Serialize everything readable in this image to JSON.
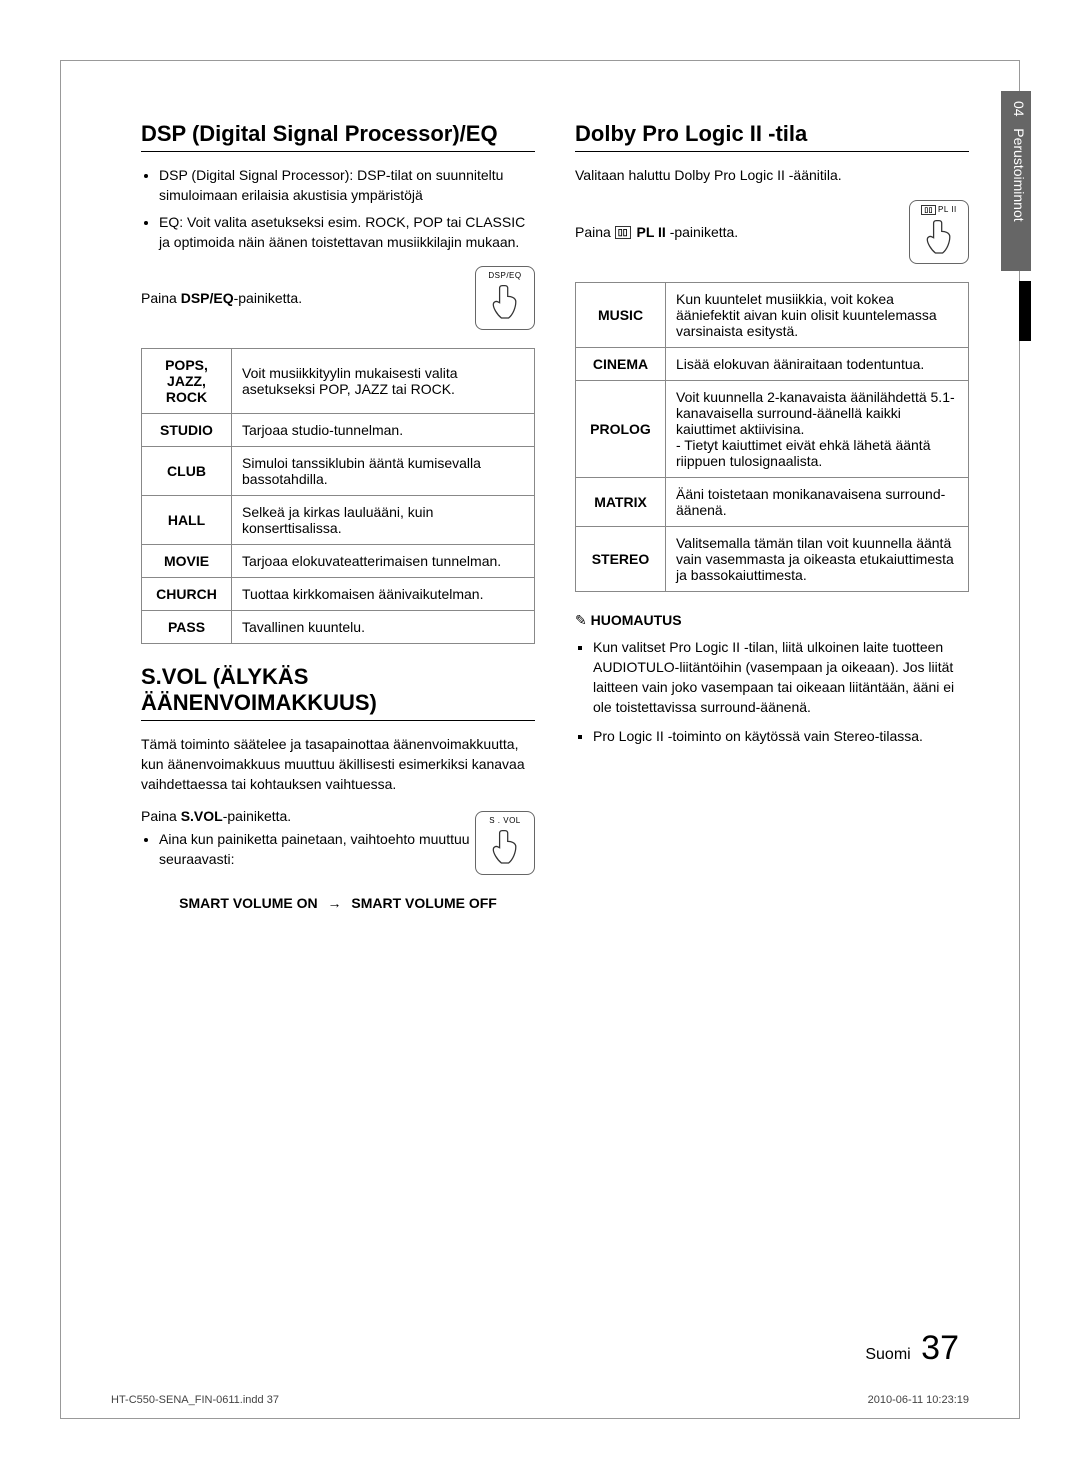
{
  "sidebar": {
    "chapter": "04",
    "title": "Perustoiminnot"
  },
  "left": {
    "h_dsp": "DSP (Digital Signal Processor)/EQ",
    "dsp_bullets": [
      "DSP (Digital Signal Processor): DSP-tilat on suunniteltu simuloimaan erilaisia akustisia ympäristöjä",
      "EQ: Voit valita asetukseksi esim. ROCK, POP tai CLASSIC ja optimoida näin äänen toistettavan musiikkilajin mukaan."
    ],
    "dsp_press_pre": "Paina ",
    "dsp_press_bold": "DSP/EQ",
    "dsp_press_post": "-painiketta.",
    "dsp_btn_label": "DSP/EQ",
    "dsp_table": [
      {
        "mode": "POPS, JAZZ, ROCK",
        "desc": "Voit musiikkityylin mukaisesti valita asetukseksi POP, JAZZ tai ROCK."
      },
      {
        "mode": "STUDIO",
        "desc": "Tarjoaa studio-tunnelman."
      },
      {
        "mode": "CLUB",
        "desc": "Simuloi tanssiklubin ääntä kumisevalla bassotahdilla."
      },
      {
        "mode": "HALL",
        "desc": "Selkeä ja kirkas lauluääni, kuin konserttisalissa."
      },
      {
        "mode": "MOVIE",
        "desc": "Tarjoaa elokuvateatterimaisen tunnelman."
      },
      {
        "mode": "CHURCH",
        "desc": "Tuottaa kirkkomaisen äänivaikutelman."
      },
      {
        "mode": "PASS",
        "desc": "Tavallinen kuuntelu."
      }
    ],
    "h_svol": "S.VOL (ÄLYKÄS ÄÄNENVOIMAKKUUS)",
    "svol_para": "Tämä toiminto säätelee ja tasapainottaa äänenvoimakkuutta, kun äänenvoimakkuus muuttuu äkillisesti esimerkiksi kanavaa vaihdettaessa tai kohtauksen vaihtuessa.",
    "svol_press_pre": "Paina ",
    "svol_press_bold": "S.VOL",
    "svol_press_post": "-painiketta.",
    "svol_btn_label": "S . VOL",
    "svol_sub": "Aina kun painiketta painetaan, vaihtoehto muuttuu seuraavasti:",
    "svol_seq_a": "SMART VOLUME ON",
    "svol_seq_b": "SMART VOLUME OFF"
  },
  "right": {
    "h_dolby": "Dolby Pro Logic II -tila",
    "dolby_para": "Valitaan haluttu Dolby Pro Logic II -äänitila.",
    "dolby_press_pre": "Paina ",
    "dolby_press_bold": "PL II",
    "dolby_press_post": " -painiketta.",
    "dolby_btn_label": "PL II",
    "dolby_table": [
      {
        "mode": "MUSIC",
        "desc": "Kun kuuntelet musiikkia, voit kokea ääniefektit aivan kuin olisit kuuntelemassa varsinaista esitystä."
      },
      {
        "mode": "CINEMA",
        "desc": "Lisää elokuvan ääniraitaan todentuntua."
      },
      {
        "mode": "PROLOG",
        "desc": "Voit kuunnella 2-kanavaista äänilähdettä 5.1-kanavaisella surround-äänellä kaikki kaiuttimet aktiivisina.\n- Tietyt kaiuttimet eivät ehkä lähetä ääntä riippuen tulosignaalista."
      },
      {
        "mode": "MATRIX",
        "desc": "Ääni toistetaan monikanavaisena surround-äänenä."
      },
      {
        "mode": "STEREO",
        "desc": "Valitsemalla tämän tilan voit kuunnella ääntä vain vasemmasta ja oikeasta etukaiuttimesta ja bassokaiuttimesta."
      }
    ],
    "note_head": "HUOMAUTUS",
    "notes": [
      "Kun valitset Pro Logic II -tilan, liitä ulkoinen laite tuotteen AUDIOTULO-liitäntöihin (vasempaan ja oikeaan). Jos liität laitteen vain joko vasempaan tai oikeaan liitäntään, ääni ei ole toistettavissa surround-äänenä.",
      "Pro Logic II -toiminto on käytössä vain Stereo-tilassa."
    ]
  },
  "footer": {
    "lang": "Suomi",
    "page": "37"
  },
  "print": {
    "file": "HT-C550-SENA_FIN-0611.indd   37",
    "stamp": "2010-06-11    10:23:19"
  }
}
